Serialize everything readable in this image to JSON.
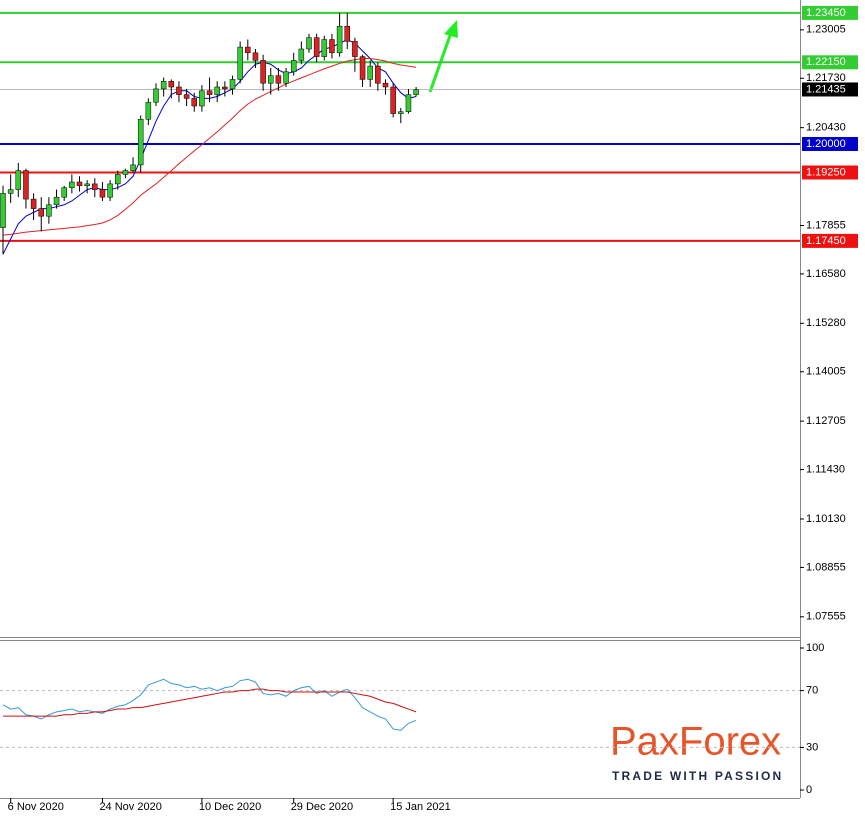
{
  "chart_data": [
    {
      "type": "candlestick",
      "categories": [
        null,
        "6 Nov 2020",
        null,
        null,
        null,
        null,
        null,
        null,
        null,
        null,
        null,
        null,
        null,
        "24 Nov 2020",
        null,
        null,
        null,
        null,
        null,
        null,
        null,
        null,
        null,
        null,
        null,
        null,
        "10 Dec 2020",
        null,
        null,
        null,
        null,
        null,
        null,
        null,
        null,
        null,
        null,
        null,
        "29 Dec 2020",
        null,
        null,
        null,
        null,
        null,
        null,
        null,
        null,
        null,
        null,
        null,
        null,
        "15 Jan 2021",
        null,
        null,
        null
      ],
      "open": [
        1.178,
        1.187,
        1.188,
        1.193,
        1.1855,
        1.183,
        1.181,
        1.184,
        1.186,
        1.1885,
        1.19,
        1.189,
        1.1895,
        1.188,
        1.186,
        1.1895,
        1.192,
        1.193,
        1.1945,
        1.2065,
        1.211,
        1.2145,
        1.2165,
        1.215,
        1.213,
        1.212,
        1.21,
        1.214,
        1.213,
        1.215,
        1.2145,
        1.217,
        1.2255,
        1.224,
        1.222,
        1.216,
        1.218,
        1.216,
        1.219,
        1.222,
        1.225,
        1.228,
        1.223,
        1.2275,
        1.224,
        1.231,
        1.227,
        1.223,
        1.217,
        1.2205,
        1.216,
        1.215,
        1.208,
        1.2085,
        1.213
      ],
      "high": [
        1.189,
        1.192,
        1.195,
        1.1935,
        1.187,
        1.186,
        1.186,
        1.188,
        1.189,
        1.192,
        1.1915,
        1.1905,
        1.191,
        1.19,
        1.1905,
        1.193,
        1.1935,
        1.1965,
        1.2075,
        1.212,
        1.216,
        1.2175,
        1.217,
        1.2165,
        1.2145,
        1.2135,
        1.2155,
        1.2175,
        1.2165,
        1.2165,
        1.218,
        1.227,
        1.2275,
        1.225,
        1.2235,
        1.22,
        1.22,
        1.22,
        1.224,
        1.227,
        1.229,
        1.229,
        1.2285,
        1.229,
        1.2345,
        1.2345,
        1.228,
        1.2235,
        1.222,
        1.2215,
        1.217,
        1.216,
        1.2095,
        1.2145,
        1.215
      ],
      "low": [
        1.171,
        1.1845,
        1.186,
        1.183,
        1.18,
        1.177,
        1.179,
        1.183,
        1.185,
        1.187,
        1.1875,
        1.187,
        1.186,
        1.185,
        1.185,
        1.188,
        1.191,
        1.1925,
        1.1925,
        1.205,
        1.21,
        1.2125,
        1.212,
        1.211,
        1.21,
        1.2085,
        1.2085,
        1.211,
        1.211,
        1.2125,
        1.213,
        1.216,
        1.222,
        1.22,
        1.214,
        1.213,
        1.214,
        1.215,
        1.218,
        1.221,
        1.224,
        1.2215,
        1.222,
        1.2225,
        1.223,
        1.225,
        1.219,
        1.215,
        1.215,
        1.214,
        1.213,
        1.207,
        1.2055,
        1.208,
        1.2125
      ],
      "close": [
        1.187,
        1.188,
        1.193,
        1.1855,
        1.183,
        1.181,
        1.184,
        1.186,
        1.1885,
        1.19,
        1.189,
        1.1895,
        1.188,
        1.186,
        1.1895,
        1.192,
        1.193,
        1.1945,
        1.2065,
        1.211,
        1.2145,
        1.2165,
        1.215,
        1.213,
        1.212,
        1.21,
        1.214,
        1.213,
        1.215,
        1.2145,
        1.217,
        1.2255,
        1.224,
        1.222,
        1.216,
        1.218,
        1.216,
        1.219,
        1.222,
        1.225,
        1.228,
        1.223,
        1.2275,
        1.224,
        1.231,
        1.227,
        1.223,
        1.217,
        1.2205,
        1.216,
        1.215,
        1.208,
        1.2085,
        1.213,
        1.2143
      ],
      "up_color": "#33cc33",
      "down_color": "#dd2222",
      "overlays": [
        {
          "color": "#0000cc",
          "values": [
            1.171,
            1.175,
            1.179,
            1.181,
            1.182,
            1.183,
            1.183,
            1.1835,
            1.184,
            1.185,
            1.1865,
            1.188,
            1.1885,
            1.188,
            1.188,
            1.1885,
            1.1895,
            1.1915,
            1.196,
            1.201,
            1.206,
            1.21,
            1.213,
            1.214,
            1.214,
            1.2125,
            1.212,
            1.212,
            1.2125,
            1.2135,
            1.2145,
            1.2165,
            1.219,
            1.221,
            1.2215,
            1.221,
            1.2195,
            1.2185,
            1.219,
            1.22,
            1.222,
            1.2235,
            1.225,
            1.2255,
            1.2265,
            1.2275,
            1.2265,
            1.2245,
            1.2225,
            1.22,
            1.219,
            1.216,
            1.2135,
            1.212,
            1.2125
          ]
        },
        {
          "color": "#dd2222",
          "values": [
            1.176,
            1.1762,
            1.1765,
            1.1768,
            1.177,
            1.1772,
            1.1774,
            1.1776,
            1.1778,
            1.178,
            1.1782,
            1.1785,
            1.1788,
            1.1792,
            1.18,
            1.1812,
            1.1828,
            1.1845,
            1.1865,
            1.188,
            1.1895,
            1.1912,
            1.193,
            1.1948,
            1.1965,
            1.1982,
            1.1998,
            1.2015,
            1.2032,
            1.205,
            1.2068,
            1.2088,
            1.2105,
            1.2118,
            1.2128,
            1.2138,
            1.2148,
            1.2158,
            1.2166,
            1.2174,
            1.2182,
            1.219,
            1.2198,
            1.2205,
            1.2212,
            1.2218,
            1.2222,
            1.2225,
            1.2225,
            1.2222,
            1.2218,
            1.2212,
            1.2208,
            1.2205,
            1.2202
          ]
        }
      ],
      "ylim": [
        1.0705,
        1.2379
      ],
      "yticks": [
        1.23005,
        {
          "value": 1.2173,
          "label": "1.21730"
        },
        {
          "value": 1.2043,
          "label": "1.20430"
        },
        1.17855,
        {
          "value": 1.1658,
          "label": "1.16580"
        },
        {
          "value": 1.1528,
          "label": "1.15280"
        },
        1.14005,
        1.12705,
        {
          "value": 1.1143,
          "label": "1.11430"
        },
        {
          "value": 1.1013,
          "label": "1.10130"
        },
        1.08855,
        1.07555
      ],
      "levels": [
        {
          "value": 1.2345,
          "label": "1.23450",
          "color": "#33cc33"
        },
        {
          "value": 1.2215,
          "label": "1.22150",
          "color": "#33cc33"
        },
        {
          "value": 1.2,
          "label": "1.20000",
          "color": "#0000cc"
        },
        {
          "value": 1.1925,
          "label": "1.19250",
          "color": "#ee1111"
        },
        {
          "value": 1.1745,
          "label": "1.17450",
          "color": "#ee1111"
        }
      ],
      "last_price": 1.21435,
      "grid": false
    },
    {
      "type": "line",
      "series": [
        {
          "color": "#3399dd",
          "values": [
            60,
            57,
            58,
            53,
            52,
            50,
            53,
            55,
            56,
            57,
            55,
            56,
            55,
            54,
            57,
            59,
            60,
            63,
            67,
            74,
            76,
            78,
            75,
            74,
            72,
            73,
            71,
            72,
            70,
            72,
            73,
            77,
            78,
            76,
            68,
            67,
            68,
            66,
            70,
            72,
            73,
            68,
            70,
            66,
            69,
            71,
            65,
            58,
            55,
            52,
            50,
            43,
            42,
            47,
            49
          ]
        },
        {
          "color": "#cc1111",
          "values": [
            52,
            52,
            52,
            52,
            52,
            52,
            52,
            52,
            53,
            53,
            54,
            54,
            55,
            55,
            56,
            57,
            57,
            58,
            58,
            59,
            60,
            61,
            62,
            63,
            64,
            65,
            66,
            67,
            68,
            69,
            69,
            70,
            70,
            71,
            71,
            70,
            70,
            69,
            69,
            69,
            69,
            69,
            69,
            69,
            69,
            69,
            68,
            67,
            66,
            64,
            62,
            61,
            59,
            57,
            55
          ]
        }
      ],
      "ylim": [
        0,
        100
      ],
      "yticks": [
        0,
        30,
        70,
        100
      ]
    }
  ],
  "logo": {
    "name": "PaxForex",
    "tagline": "TRADE WITH PASSION"
  }
}
